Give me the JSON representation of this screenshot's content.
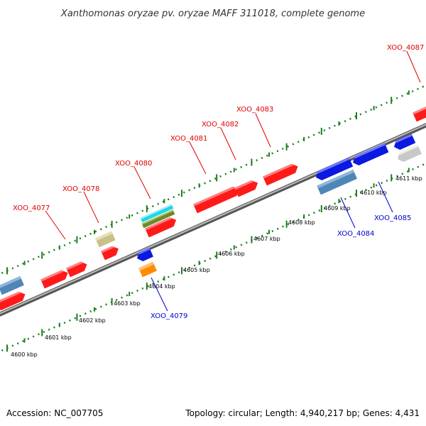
{
  "title": "Xanthomonas oryzae pv. oryzae MAFF 311018, complete genome",
  "footer": {
    "accession": "Accession: NC_007705",
    "topology": "Topology: circular; Length: 4,940,217 bp; Genes: 4,431"
  },
  "scale_labels": [
    "4600 kbp",
    "4601 kbp",
    "4602 kbp",
    "4603 kbp",
    "4604 kbp",
    "4605 kbp",
    "4606 kbp",
    "4607 kbp",
    "4608 kbp",
    "4609 kbp",
    "4610 kbp",
    "4611 kbp"
  ],
  "gene_labels": {
    "forward": [
      "XOO_4077",
      "XOO_4078",
      "XOO_4080",
      "XOO_4081",
      "XOO_4082",
      "XOO_4083",
      "XOO_4087"
    ],
    "reverse": [
      "XOO_4079",
      "XOO_4084",
      "XOO_4085"
    ]
  },
  "colors": {
    "forward_label": "#e00000",
    "reverse_label": "#0000cc",
    "red_gene": "#ff1a1a",
    "blue_gene": "#0a18e0",
    "steel_gene": "#4f86b8",
    "khaki_gene": "#c9c08a",
    "cyan_gene": "#22d6e8",
    "olive_gene": "#6d8a2a",
    "orange_gene": "#ff8c00",
    "gray_gene": "#c8c8c8",
    "dot_track": "#1e7d1e"
  }
}
